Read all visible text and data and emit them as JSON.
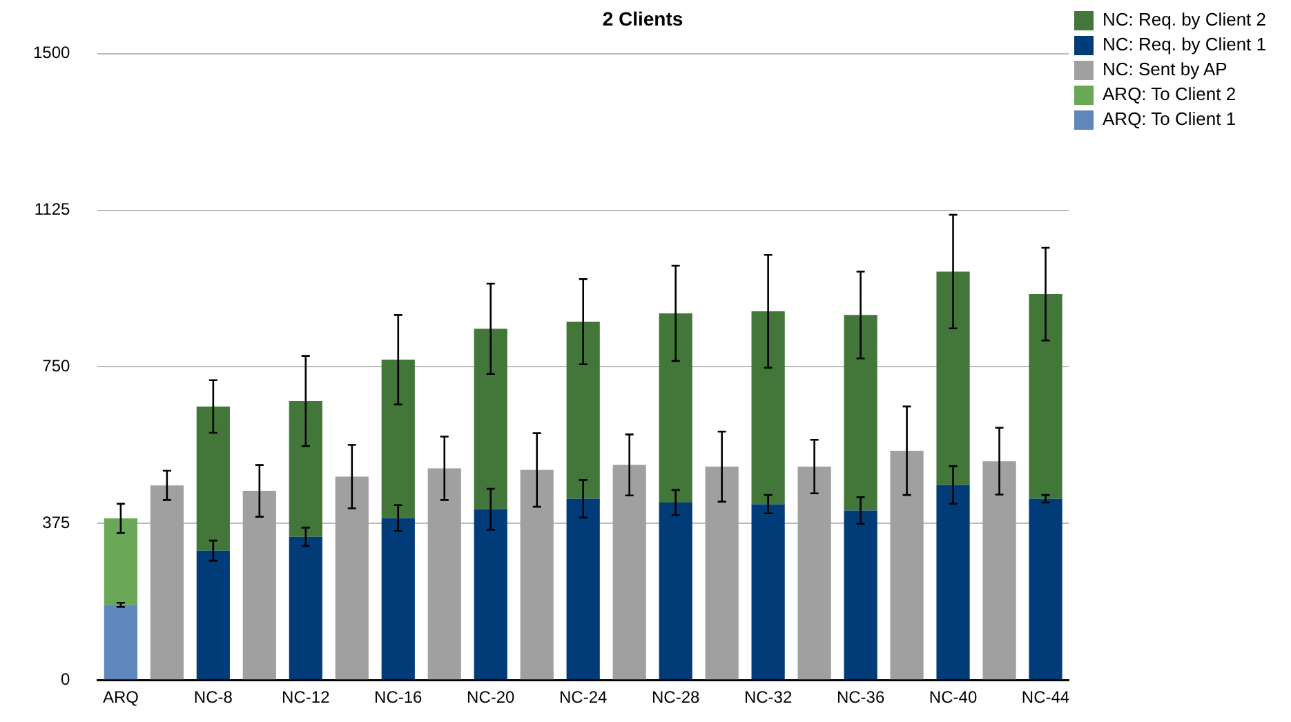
{
  "chart_data": {
    "type": "bar",
    "title": "2 Clients",
    "stacked": true,
    "categories": [
      "ARQ",
      null,
      "NC-8",
      null,
      "NC-12",
      null,
      "NC-16",
      null,
      "NC-20",
      null,
      "NC-24",
      null,
      "NC-28",
      null,
      "NC-32",
      null,
      "NC-36",
      null,
      "NC-40",
      null,
      "NC-44"
    ],
    "series": [
      {
        "name": "ARQ: To Client 1",
        "color": "#5f87bb",
        "values": [
          180,
          null,
          null,
          null,
          null,
          null,
          null,
          null,
          null,
          null,
          null,
          null,
          null,
          null,
          null,
          null,
          null,
          null,
          null,
          null,
          null
        ],
        "errors": [
          5,
          null,
          null,
          null,
          null,
          null,
          null,
          null,
          null,
          null,
          null,
          null,
          null,
          null,
          null,
          null,
          null,
          null,
          null,
          null,
          null
        ]
      },
      {
        "name": "ARQ: To Client 2",
        "color": "#6aa858",
        "values": [
          207,
          null,
          null,
          null,
          null,
          null,
          null,
          null,
          null,
          null,
          null,
          null,
          null,
          null,
          null,
          null,
          null,
          null,
          null,
          null,
          null
        ],
        "errors": [
          35,
          null,
          null,
          null,
          null,
          null,
          null,
          null,
          null,
          null,
          null,
          null,
          null,
          null,
          null,
          null,
          null,
          null,
          null,
          null,
          null
        ]
      },
      {
        "name": "NC: Sent by AP",
        "color": "#a0a0a0",
        "values": [
          null,
          466,
          null,
          453,
          null,
          487,
          null,
          507,
          null,
          503,
          null,
          515,
          null,
          511,
          null,
          511,
          null,
          549,
          null,
          524,
          null
        ],
        "errors": [
          null,
          35,
          null,
          62,
          null,
          76,
          null,
          76,
          null,
          88,
          null,
          73,
          null,
          84,
          null,
          64,
          null,
          106,
          null,
          80,
          null
        ]
      },
      {
        "name": "NC: Req. by Client 1",
        "color": "#023c78",
        "values": [
          null,
          null,
          310,
          null,
          343,
          null,
          388,
          null,
          409,
          null,
          434,
          null,
          425,
          null,
          421,
          null,
          406,
          null,
          467,
          null,
          434
        ],
        "errors": [
          null,
          null,
          24,
          null,
          22,
          null,
          31,
          null,
          49,
          null,
          45,
          null,
          30,
          null,
          22,
          null,
          32,
          null,
          45,
          null,
          9
        ]
      },
      {
        "name": "NC: Req. by Client 2",
        "color": "#43773a",
        "values": [
          null,
          null,
          345,
          null,
          325,
          null,
          379,
          null,
          432,
          null,
          424,
          null,
          453,
          null,
          462,
          null,
          468,
          null,
          511,
          null,
          490
        ],
        "errors": [
          null,
          null,
          63,
          null,
          108,
          null,
          107,
          null,
          108,
          null,
          102,
          null,
          114,
          null,
          135,
          null,
          104,
          null,
          136,
          null,
          111
        ]
      }
    ],
    "ylim": [
      0,
      1500
    ],
    "yticks": [
      0,
      375,
      750,
      1125,
      1500
    ],
    "grid": "y",
    "legend": "right"
  }
}
